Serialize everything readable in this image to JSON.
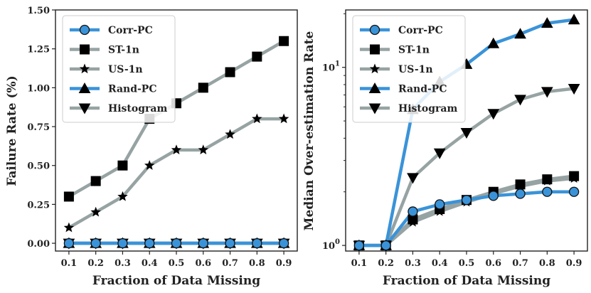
{
  "chart_data": [
    {
      "type": "line",
      "xlabel": "Fraction of Data Missing",
      "ylabel": "Failure Rate (%)",
      "yscale": "linear",
      "ylim": [
        -0.05,
        1.5
      ],
      "xlim": [
        0.05,
        0.95
      ],
      "xticks": [
        "0.1",
        "0.2",
        "0.3",
        "0.4",
        "0.5",
        "0.6",
        "0.7",
        "0.8",
        "0.9"
      ],
      "yticks": [
        "0.00",
        "0.25",
        "0.50",
        "0.75",
        "1.00",
        "1.25",
        "1.50"
      ],
      "ytick_values": [
        0,
        0.25,
        0.5,
        0.75,
        1.0,
        1.25,
        1.5
      ],
      "legend_loc": "upper-left",
      "x": [
        0.1,
        0.2,
        0.3,
        0.4,
        0.5,
        0.6,
        0.7,
        0.8,
        0.9
      ],
      "series": [
        {
          "name": "Corr-PC",
          "color": "#3a93d8",
          "marker": "circle",
          "values": [
            0,
            0,
            0,
            0,
            0,
            0,
            0,
            0,
            0
          ]
        },
        {
          "name": "ST-1n",
          "color": "#97a3a3",
          "marker": "square",
          "values": [
            0.3,
            0.4,
            0.5,
            0.8,
            0.9,
            1.0,
            1.1,
            1.2,
            1.3
          ]
        },
        {
          "name": "US-1n",
          "color": "#97a3a3",
          "marker": "star",
          "values": [
            0.1,
            0.2,
            0.3,
            0.5,
            0.6,
            0.6,
            0.7,
            0.8,
            0.8
          ]
        },
        {
          "name": "Rand-PC",
          "color": "#3a93d8",
          "marker": "triangle",
          "values": [
            0,
            0,
            0,
            0,
            0,
            0,
            0,
            0,
            0
          ]
        },
        {
          "name": "Histogram",
          "color": "#97a3a3",
          "marker": "tri-down",
          "values": [
            0,
            0,
            0,
            0,
            0,
            0,
            0,
            0,
            0
          ]
        }
      ]
    },
    {
      "type": "line",
      "xlabel": "Fraction of Data Missing",
      "ylabel": "Median Over-estimation Rate",
      "yscale": "log",
      "ylim": [
        0.93,
        21
      ],
      "xlim": [
        0.05,
        0.95
      ],
      "xticks": [
        "0.1",
        "0.2",
        "0.3",
        "0.4",
        "0.5",
        "0.6",
        "0.7",
        "0.8",
        "0.9"
      ],
      "yticks": [
        "10⁰",
        "10¹"
      ],
      "ytick_values": [
        1,
        10
      ],
      "legend_loc": "upper-left",
      "x": [
        0.1,
        0.2,
        0.3,
        0.4,
        0.5,
        0.6,
        0.7,
        0.8,
        0.9
      ],
      "series": [
        {
          "name": "Corr-PC",
          "color": "#3a93d8",
          "marker": "circle",
          "values": [
            1.0,
            1.0,
            1.55,
            1.7,
            1.8,
            1.9,
            1.95,
            2.0,
            2.0
          ]
        },
        {
          "name": "ST-1n",
          "color": "#97a3a3",
          "marker": "square",
          "values": [
            1.0,
            1.0,
            1.4,
            1.6,
            1.8,
            2.0,
            2.2,
            2.35,
            2.45
          ]
        },
        {
          "name": "US-1n",
          "color": "#97a3a3",
          "marker": "star",
          "values": [
            1.0,
            1.0,
            1.35,
            1.55,
            1.75,
            1.95,
            2.15,
            2.3,
            2.38
          ]
        },
        {
          "name": "Rand-PC",
          "color": "#3a93d8",
          "marker": "triangle",
          "values": [
            1.0,
            1.0,
            5.8,
            8.3,
            10.4,
            13.6,
            15.4,
            17.7,
            18.5
          ]
        },
        {
          "name": "Histogram",
          "color": "#97a3a3",
          "marker": "tri-down",
          "values": [
            1.0,
            1.0,
            2.4,
            3.3,
            4.3,
            5.5,
            6.6,
            7.3,
            7.6
          ]
        }
      ]
    }
  ]
}
